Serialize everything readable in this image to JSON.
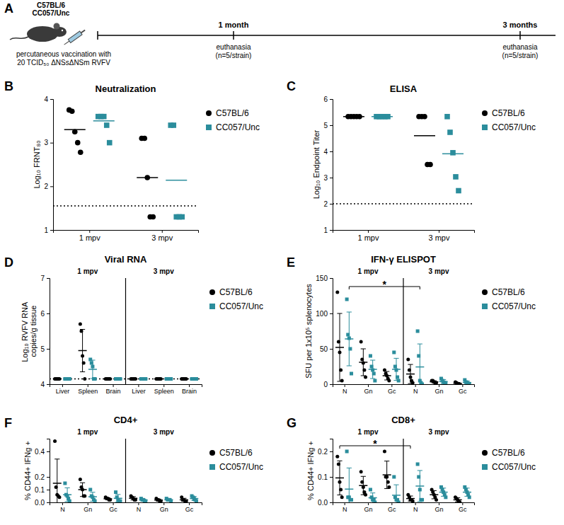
{
  "diagram": {
    "panel": "A",
    "strains": [
      "C57BL/6",
      "CC057/Unc"
    ],
    "vaccination": [
      "percutaneous vaccination with",
      "20 TCID₅₀ ΔNSsΔNSm RVFV"
    ],
    "timepoints": [
      {
        "label": "1 month",
        "event": "euthanasia",
        "group": "(n=5/strain)"
      },
      {
        "label": "3 months",
        "event": "euthanasia",
        "group": "(n=5/strain)"
      }
    ]
  },
  "chart_data": [
    {
      "panel": "B",
      "type": "scatter",
      "title": "Neutralization",
      "ylabel": "Log₁₀ FRNT₈₀",
      "categories": [
        "1 mpv",
        "3 mpv"
      ],
      "ylim": [
        1,
        4
      ],
      "yticks": [
        1,
        2,
        3,
        4
      ],
      "detection_limit": 1.55,
      "legend": "right",
      "series": [
        {
          "name": "C57BL/6",
          "color": "#000000",
          "marker": "circle",
          "values": [
            [
              3.75,
              3.72,
              3.25,
              3.0,
              2.78
            ],
            [
              3.1,
              3.1,
              2.2,
              1.3,
              1.3
            ]
          ],
          "mean": [
            3.3,
            2.2
          ]
        },
        {
          "name": "CC057/Unc",
          "color": "#2b8d9c",
          "marker": "square",
          "values": [
            [
              3.6,
              3.6,
              3.6,
              3.4,
              3.0
            ],
            [
              3.4,
              3.4,
              1.3,
              1.3,
              1.3
            ]
          ],
          "mean": [
            3.5,
            2.14
          ]
        }
      ]
    },
    {
      "panel": "C",
      "type": "scatter",
      "title": "ELISA",
      "ylabel": "Log₁₀ Endpoint Titer",
      "categories": [
        "1 mpv",
        "3 mpv"
      ],
      "ylim": [
        1,
        6
      ],
      "yticks": [
        1,
        2,
        3,
        4,
        5,
        6
      ],
      "detection_limit": 2,
      "legend": "right",
      "series": [
        {
          "name": "C57BL/6",
          "color": "#000000",
          "marker": "circle",
          "values": [
            [
              5.33,
              5.33,
              5.33,
              5.33,
              5.33
            ],
            [
              5.33,
              5.33,
              5.33,
              3.5,
              3.5
            ]
          ],
          "mean": [
            5.33,
            4.6
          ]
        },
        {
          "name": "CC057/Unc",
          "color": "#2b8d9c",
          "marker": "square",
          "values": [
            [
              5.33,
              5.33,
              5.33,
              5.33,
              5.33
            ],
            [
              5.33,
              4.73,
              3.95,
              3.03,
              2.5
            ]
          ],
          "mean": [
            5.33,
            3.91
          ]
        }
      ]
    },
    {
      "panel": "D",
      "type": "scatter",
      "title": "Viral RNA",
      "ylabel": "Log₁₀ RVFV RNA copies/g tissue",
      "categories": [
        "Liver",
        "Spleen",
        "Brain",
        "Liver",
        "Spleen",
        "Brain"
      ],
      "groups": [
        "1 mpv",
        "3 mpv"
      ],
      "ylim": [
        4,
        7
      ],
      "yticks": [
        4,
        5,
        6,
        7
      ],
      "detection_limit": 4.15,
      "legend": "right",
      "series": [
        {
          "name": "C57BL/6",
          "color": "#000000",
          "marker": "circle",
          "values": [
            [
              4.15,
              4.15,
              4.15,
              4.15,
              4.15
            ],
            [
              5.7,
              5.5,
              4.8,
              4.6,
              4.15
            ],
            [
              4.15,
              4.15,
              4.15,
              4.15,
              4.15
            ],
            [
              4.15,
              4.15,
              4.15,
              4.15,
              4.15
            ],
            [
              4.15,
              4.15,
              4.15,
              4.15,
              4.15
            ],
            [
              4.15,
              4.15,
              4.15,
              4.15,
              4.15
            ]
          ],
          "mean": [
            4.15,
            4.95,
            4.15,
            4.15,
            4.15,
            4.15
          ],
          "error": [
            0,
            0.6,
            0,
            0,
            0,
            0
          ]
        },
        {
          "name": "CC057/Unc",
          "color": "#2b8d9c",
          "marker": "square",
          "values": [
            [
              4.15,
              4.15,
              4.15,
              4.15,
              4.15
            ],
            [
              4.7,
              4.6,
              4.5,
              4.15,
              4.15
            ],
            [
              4.15,
              4.15,
              4.15,
              4.15,
              4.15
            ],
            [
              4.15,
              4.15,
              4.15,
              4.15,
              4.15
            ],
            [
              4.15,
              4.15,
              4.15,
              4.15,
              4.15
            ],
            [
              4.15,
              4.15,
              4.15,
              4.15,
              4.15
            ]
          ],
          "mean": [
            4.15,
            4.42,
            4.15,
            4.15,
            4.15,
            4.15
          ],
          "error": [
            0,
            0.26,
            0,
            0,
            0,
            0
          ]
        }
      ]
    },
    {
      "panel": "E",
      "type": "scatter",
      "title": "IFN-γ ELISPOT",
      "ylabel": "SFU per 1x10⁵ splenocytes",
      "categories": [
        "N",
        "Gn",
        "Gc",
        "N",
        "Gn",
        "Gc"
      ],
      "groups": [
        "1 mpv",
        "3 mpv"
      ],
      "ylim": [
        0,
        150
      ],
      "yticks": [
        0,
        50,
        100,
        150
      ],
      "legend": "right",
      "significance": [
        {
          "series": 1,
          "from": 0,
          "to": 3,
          "label": "*"
        }
      ],
      "series": [
        {
          "name": "C57BL/6",
          "color": "#000000",
          "marker": "circle",
          "values": [
            [
              130,
              60,
              45,
              20,
              5
            ],
            [
              60,
              35,
              30,
              20,
              10
            ],
            [
              20,
              15,
              12,
              8,
              5
            ],
            [
              35,
              20,
              10,
              5,
              2
            ],
            [
              5,
              5,
              3,
              2,
              2
            ],
            [
              3,
              2,
              1,
              0,
              0
            ]
          ],
          "mean": [
            52,
            31,
            12,
            14.4,
            3.4,
            1.2
          ],
          "error": [
            48,
            19,
            6,
            13.5,
            1.5,
            1.3
          ]
        },
        {
          "name": "CC057/Unc",
          "color": "#2b8d9c",
          "marker": "square",
          "values": [
            [
              120,
              70,
              65,
              50,
              15
            ],
            [
              40,
              25,
              20,
              15,
              5
            ],
            [
              45,
              25,
              20,
              10,
              5
            ],
            [
              75,
              40,
              5,
              2,
              0
            ],
            [
              8,
              5,
              3,
              2,
              1
            ],
            [
              6,
              3,
              2,
              1,
              0
            ]
          ],
          "mean": [
            64,
            21,
            21,
            24.4,
            3.8,
            2.4
          ],
          "error": [
            38,
            13,
            15.6,
            32.5,
            2.8,
            2.3
          ]
        }
      ]
    },
    {
      "panel": "F",
      "type": "scatter",
      "title": "CD4+",
      "ylabel": "% CD44+ IFNg +",
      "categories": [
        "N",
        "Gn",
        "Gc",
        "N",
        "Gn",
        "Gc"
      ],
      "groups": [
        "1 mpv",
        "3 mpv"
      ],
      "ylim": [
        0,
        0.5
      ],
      "yticks": [
        {
          "value": 0,
          "label": "0.0"
        },
        0.1,
        0.2,
        0.4
      ],
      "legend": "right",
      "series": [
        {
          "name": "C57BL/6",
          "color": "#000000",
          "marker": "circle",
          "values": [
            [
              0.48,
              0.12,
              0.06,
              0.05,
              0.04
            ],
            [
              0.18,
              0.12,
              0.1,
              0.05,
              0.05
            ],
            [
              0.04,
              0.03,
              0.03,
              0.02,
              0.02
            ],
            [
              0.05,
              0.04,
              0.03,
              0.02,
              0.02
            ],
            [
              0.03,
              0.02,
              0.02,
              0.01,
              0.01
            ],
            [
              0.04,
              0.02,
              0.02,
              0.01,
              0.01
            ]
          ],
          "mean": [
            0.15,
            0.1,
            0.028,
            0.032,
            0.018,
            0.02
          ],
          "error": [
            0.19,
            0.054,
            0.008,
            0.013,
            0.008,
            0.012
          ]
        },
        {
          "name": "CC057/Unc",
          "color": "#2b8d9c",
          "marker": "square",
          "values": [
            [
              0.15,
              0.06,
              0.05,
              0.03,
              0.01
            ],
            [
              0.1,
              0.05,
              0.04,
              0.02,
              0.01
            ],
            [
              0.08,
              0.04,
              0.02,
              0.01,
              0.01
            ],
            [
              0.03,
              0.02,
              0.02,
              0.01,
              0.01
            ],
            [
              0.03,
              0.02,
              0.02,
              0.02,
              0.01
            ],
            [
              0.05,
              0.04,
              0.03,
              0.02,
              0.01
            ]
          ],
          "mean": [
            0.06,
            0.044,
            0.032,
            0.018,
            0.02,
            0.03
          ],
          "error": [
            0.054,
            0.035,
            0.03,
            0.008,
            0.007,
            0.016
          ]
        }
      ]
    },
    {
      "panel": "G",
      "type": "scatter",
      "title": "CD8+",
      "ylabel": "% CD44+ IFNg +",
      "categories": [
        "N",
        "Gn",
        "Gc",
        "N",
        "Gn",
        "Gc"
      ],
      "groups": [
        "1 mpv",
        "3 mpv"
      ],
      "ylim": [
        0,
        0.25
      ],
      "yticks": [
        {
          "value": 0,
          "label": "0.0"
        },
        0.1,
        0.2
      ],
      "legend": "right",
      "significance": [
        {
          "series": 0,
          "from": 0,
          "to": 3,
          "label": "*"
        }
      ],
      "series": [
        {
          "name": "C57BL/6",
          "color": "#000000",
          "marker": "circle",
          "values": [
            [
              0.18,
              0.15,
              0.08,
              0.05,
              0.02
            ],
            [
              0.12,
              0.08,
              0.06,
              0.04,
              0.03
            ],
            [
              0.2,
              0.1,
              0.1,
              0.08,
              0.06
            ],
            [
              0.03,
              0.02,
              0.01,
              0.01,
              0.005
            ],
            [
              0.05,
              0.04,
              0.03,
              0.02,
              0.01
            ],
            [
              0.02,
              0.015,
              0.01,
              0.005,
              0
            ]
          ],
          "mean": [
            0.096,
            0.066,
            0.108,
            0.015,
            0.03,
            0.01
          ],
          "error": [
            0.067,
            0.036,
            0.054,
            0.01,
            0.016,
            0.008
          ]
        },
        {
          "name": "CC057/Unc",
          "color": "#2b8d9c",
          "marker": "square",
          "values": [
            [
              0.2,
              0.02,
              0.02,
              0.01,
              0.01
            ],
            [
              0.05,
              0.02,
              0.01,
              0.01,
              0
            ],
            [
              0.1,
              0.02,
              0.01,
              0.01,
              0
            ],
            [
              0.15,
              0.1,
              0.05,
              0.01,
              0.01
            ],
            [
              0.06,
              0.05,
              0.04,
              0.03,
              0.02
            ],
            [
              0.06,
              0.05,
              0.04,
              0.03,
              0.02
            ]
          ],
          "mean": [
            0.052,
            0.018,
            0.028,
            0.064,
            0.04,
            0.04
          ],
          "error": [
            0.083,
            0.019,
            0.041,
            0.061,
            0.016,
            0.016
          ]
        }
      ]
    }
  ]
}
